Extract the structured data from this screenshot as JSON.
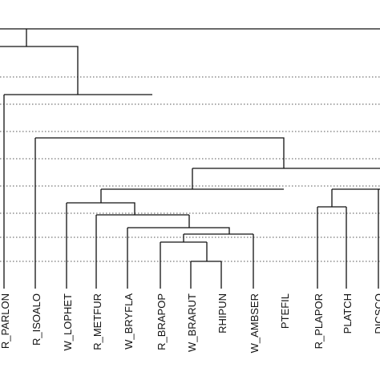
{
  "leaves": [
    {
      "id": "r_parlon",
      "label": "R_PARLON"
    },
    {
      "id": "r_isoalo",
      "label": "R_ISOALO"
    },
    {
      "id": "w_lophet",
      "label": "W_LOPHET"
    },
    {
      "id": "r_metfur",
      "label": "R_METFUR"
    },
    {
      "id": "w_bryfla",
      "label": "W_BRYFLA"
    },
    {
      "id": "r_brapop",
      "label": "R_BRAPOP"
    },
    {
      "id": "w_brarut",
      "label": "W_BRARUT"
    },
    {
      "id": "rhipun",
      "label": "RHIPUN"
    },
    {
      "id": "w_ambser",
      "label": "W_AMBSER"
    },
    {
      "id": "ptefil",
      "label": "PTEFIL"
    },
    {
      "id": "r_plapor",
      "label": "R_PLAPOR"
    },
    {
      "id": "platch",
      "label": "PLATCH"
    },
    {
      "id": "dicsco",
      "label": "DICSCO"
    }
  ]
}
